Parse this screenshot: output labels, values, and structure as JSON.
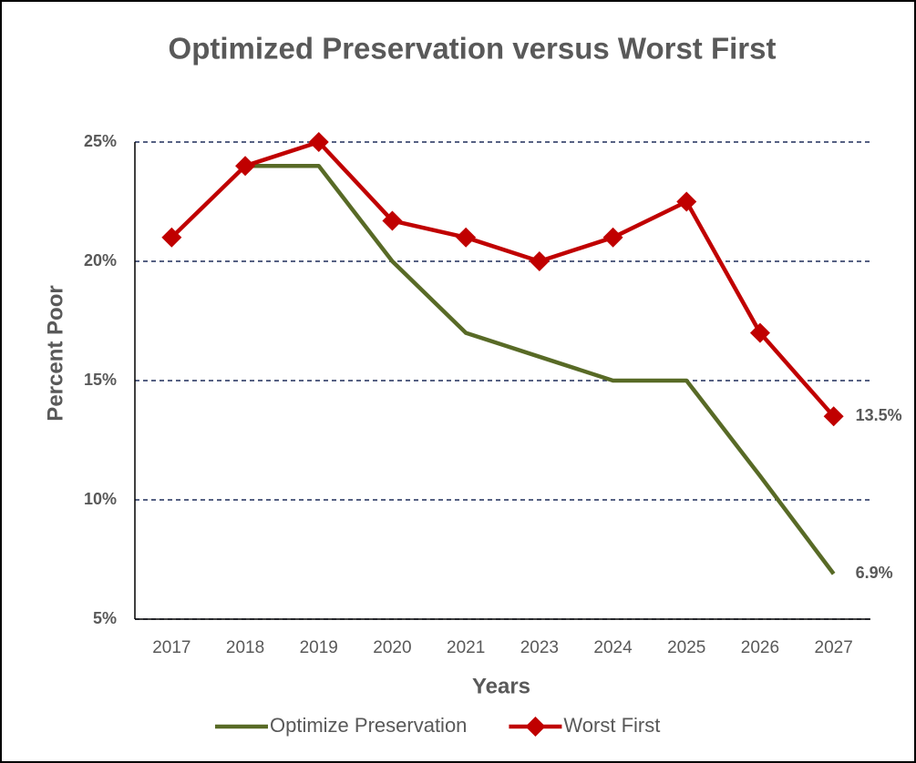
{
  "chart_data": {
    "type": "line",
    "title": "Optimized Preservation versus Worst First",
    "x_label": "Years",
    "y_label": "Percent Poor",
    "categories": [
      "2017",
      "2018",
      "2019",
      "2020",
      "2021",
      "2023",
      "2024",
      "2025",
      "2026",
      "2027"
    ],
    "series": [
      {
        "name": "Optimize Preservation",
        "color": "#586a26",
        "marker": "none",
        "values": [
          null,
          24,
          24,
          20,
          17,
          16,
          15,
          15,
          11,
          6.9
        ],
        "value_labels": [
          null,
          null,
          null,
          null,
          null,
          null,
          null,
          null,
          null,
          "6.9%"
        ]
      },
      {
        "name": "Worst First",
        "color": "#c00000",
        "marker": "diamond",
        "values": [
          21,
          24,
          25,
          21.7,
          21,
          20,
          21,
          22.5,
          17,
          13.5
        ],
        "value_labels": [
          null,
          null,
          null,
          null,
          null,
          null,
          null,
          null,
          null,
          "13.5%"
        ]
      }
    ],
    "ylim": [
      5,
      25
    ],
    "yticks": [
      {
        "value": 5,
        "label": "5%"
      },
      {
        "value": 10,
        "label": "10%"
      },
      {
        "value": 15,
        "label": "15%"
      },
      {
        "value": 20,
        "label": "20%"
      },
      {
        "value": 25,
        "label": "25%"
      }
    ],
    "grid": true,
    "legend": "bottom"
  }
}
